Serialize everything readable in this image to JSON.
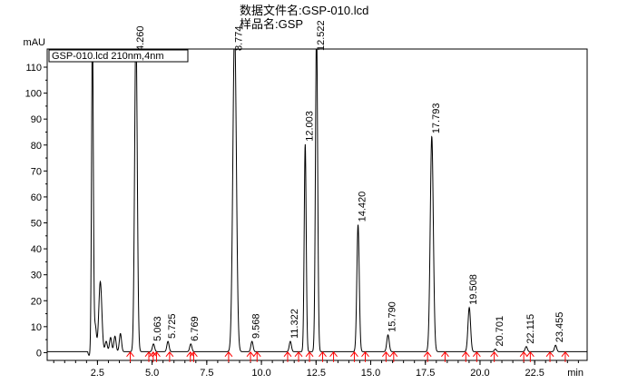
{
  "header": {
    "file_label": "数据文件名:",
    "file_name": "GSP-010.lcd",
    "sample_label": "样品名:",
    "sample_name": "GSP"
  },
  "chart_data": {
    "type": "line",
    "ylabel": "mAU",
    "xlabel": "min",
    "xlim": [
      0.2,
      24.9
    ],
    "ylim": [
      -3,
      117
    ],
    "xticks": [
      2.5,
      5.0,
      7.5,
      10.0,
      12.5,
      15.0,
      17.5,
      20.0,
      22.5
    ],
    "xtick_labels": [
      "2.5",
      "5.0",
      "7.5",
      "10.0",
      "12.5",
      "15.0",
      "17.5",
      "20.0",
      "22.5"
    ],
    "yticks": [
      0,
      10,
      20,
      30,
      40,
      50,
      60,
      70,
      80,
      90,
      100,
      110
    ],
    "ytick_labels": [
      "0",
      "10",
      "20",
      "30",
      "40",
      "50",
      "60",
      "70",
      "80",
      "90",
      "100",
      "110"
    ],
    "legend": "GSP-010.lcd 210nm,4nm",
    "series": [
      {
        "name": "GSP-010.lcd 210nm,4nm",
        "color": "#000000",
        "peaks": [
          {
            "rt": 2.27,
            "height": 125,
            "width": 0.04,
            "label": ""
          },
          {
            "rt": 2.4,
            "height": 10,
            "width": 0.05,
            "label": ""
          },
          {
            "rt": 2.63,
            "height": 27,
            "width": 0.07,
            "label": ""
          },
          {
            "rt": 2.9,
            "height": 4,
            "width": 0.05,
            "label": ""
          },
          {
            "rt": 3.1,
            "height": 5.5,
            "width": 0.05,
            "label": ""
          },
          {
            "rt": 3.3,
            "height": 6,
            "width": 0.05,
            "label": ""
          },
          {
            "rt": 3.55,
            "height": 7,
            "width": 0.05,
            "label": ""
          },
          {
            "rt": 4.26,
            "height": 125,
            "width": 0.06,
            "label": "4.260"
          },
          {
            "rt": 5.063,
            "height": 3,
            "width": 0.05,
            "label": "5.063"
          },
          {
            "rt": 5.725,
            "height": 4,
            "width": 0.05,
            "label": "5.725"
          },
          {
            "rt": 6.769,
            "height": 3,
            "width": 0.05,
            "label": "6.769"
          },
          {
            "rt": 8.774,
            "height": 125,
            "width": 0.08,
            "label": "8.774"
          },
          {
            "rt": 9.568,
            "height": 4,
            "width": 0.05,
            "label": "9.568"
          },
          {
            "rt": 11.322,
            "height": 4,
            "width": 0.05,
            "label": "11.322"
          },
          {
            "rt": 12.003,
            "height": 80,
            "width": 0.045,
            "label": "12.003"
          },
          {
            "rt": 12.522,
            "height": 125,
            "width": 0.05,
            "label": "12.522"
          },
          {
            "rt": 14.42,
            "height": 49,
            "width": 0.055,
            "label": "14.420"
          },
          {
            "rt": 15.79,
            "height": 6.5,
            "width": 0.055,
            "label": "15.790"
          },
          {
            "rt": 17.793,
            "height": 83,
            "width": 0.07,
            "label": "17.793"
          },
          {
            "rt": 19.508,
            "height": 17,
            "width": 0.06,
            "label": "19.508"
          },
          {
            "rt": 20.701,
            "height": 1,
            "width": 0.05,
            "label": "20.701"
          },
          {
            "rt": 22.115,
            "height": 2,
            "width": 0.05,
            "label": "22.115"
          },
          {
            "rt": 23.455,
            "height": 2.5,
            "width": 0.05,
            "label": "23.455"
          }
        ],
        "integration_markers": [
          4.0,
          4.85,
          5.05,
          5.2,
          5.8,
          6.75,
          6.9,
          8.5,
          9.5,
          9.8,
          11.2,
          11.7,
          12.2,
          12.8,
          13.3,
          14.25,
          14.75,
          15.7,
          16.05,
          17.6,
          18.4,
          19.35,
          19.85,
          20.65,
          22.0,
          22.3,
          23.2,
          23.9
        ]
      }
    ]
  }
}
